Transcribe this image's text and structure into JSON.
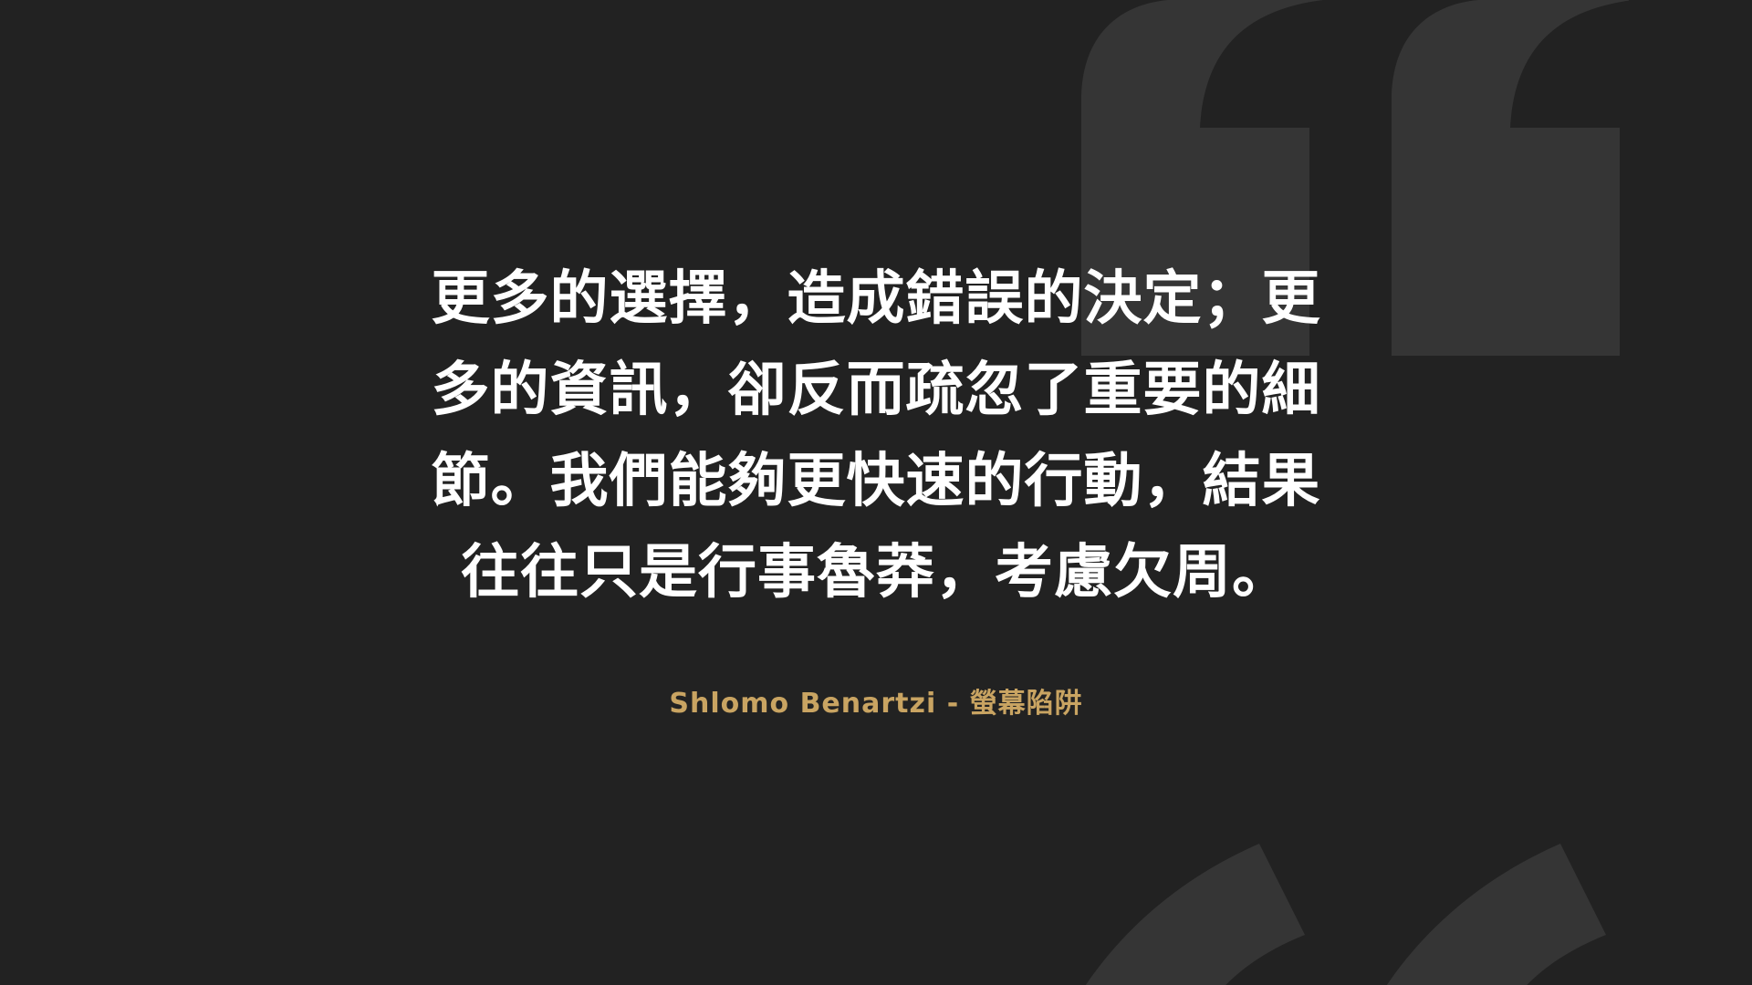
{
  "quote": {
    "text": "更多的選擇，造成錯誤的決定；更多的資訊，卻反而疏忽了重要的細節。我們能夠更快速的行動，結果往往只是行事魯莽，考慮欠周。"
  },
  "attribution": {
    "text": "Shlomo Benartzi - 螢幕陷阱"
  },
  "colors": {
    "background": "#222222",
    "quote_mark": "#353535",
    "quote_text": "#ffffff",
    "attribution": "#c9a462"
  },
  "icons": {
    "top": "open-quote-icon",
    "bottom": "open-quote-icon"
  }
}
